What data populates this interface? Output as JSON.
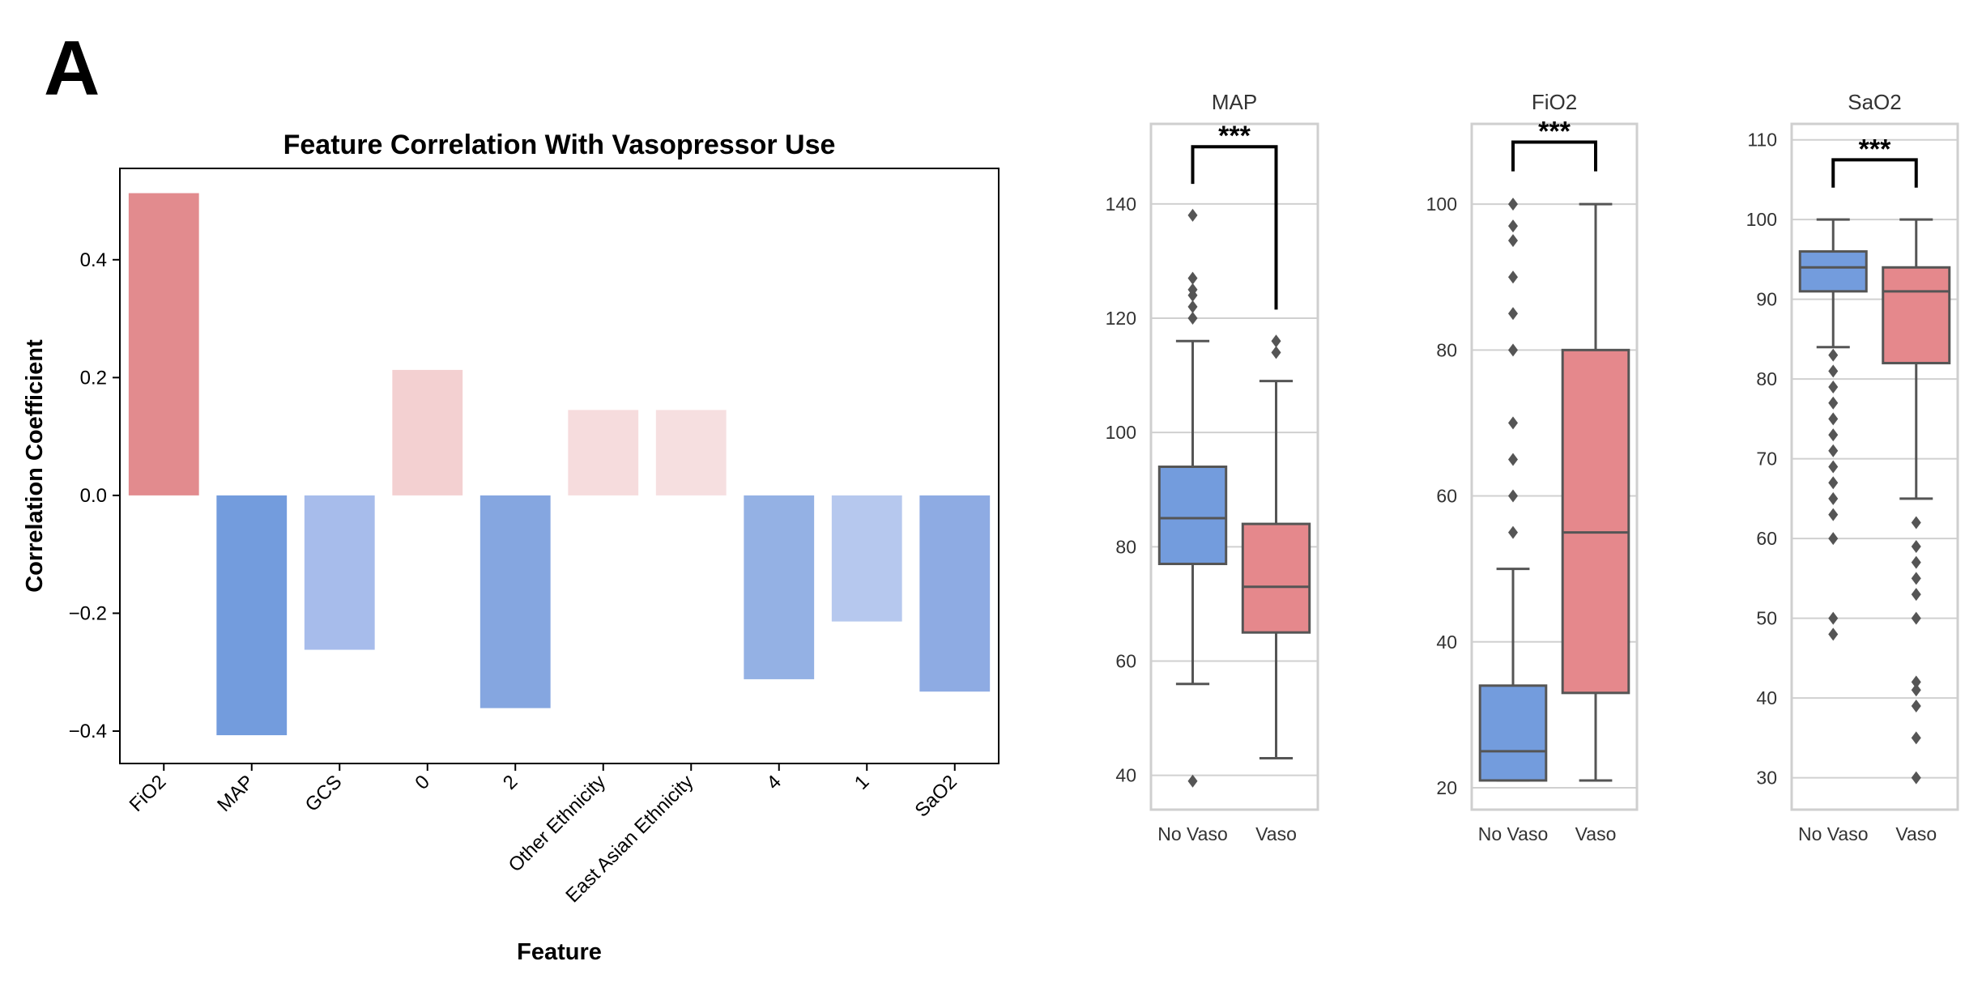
{
  "panel_label": "A",
  "chart_data": [
    {
      "type": "bar",
      "title": "Feature Correlation With Vasopressor Use",
      "xlabel": "Feature",
      "ylabel": "Correlation Coefficient",
      "categories": [
        "FiO2",
        "MAP",
        "GCS",
        "0",
        "2",
        "Other Ethnicity",
        "East Asian Ethnicity",
        "4",
        "1",
        "SaO2"
      ],
      "values": [
        0.513,
        -0.407,
        -0.262,
        0.213,
        -0.361,
        0.145,
        0.145,
        -0.312,
        -0.214,
        -0.333
      ],
      "bar_colors": [
        "#e28b8e",
        "#739cdd",
        "#a7bceb",
        "#f3d0d1",
        "#85a6e0",
        "#f6dcdd",
        "#f6dfe0",
        "#94b1e4",
        "#b6c8ee",
        "#8eabe3"
      ],
      "yticks": [
        0.4,
        0.2,
        0.0,
        -0.2,
        -0.4
      ],
      "ytick_labels": [
        "0.4",
        "0.2",
        "0.0",
        "−0.2",
        "−0.4"
      ],
      "ylim": [
        -0.455,
        0.555
      ],
      "grid": false
    },
    {
      "type": "box",
      "title": "MAP",
      "categories": [
        "No Vaso",
        "Vaso"
      ],
      "colors": [
        "#739cdd",
        "#e5888c"
      ],
      "ylim": [
        34,
        154
      ],
      "yticks": [
        40,
        60,
        80,
        100,
        120,
        140
      ],
      "ytick_labels": [
        "40",
        "60",
        "80",
        "100",
        "120",
        "140"
      ],
      "grid": true,
      "boxes": [
        {
          "whislo": 56,
          "q1": 77,
          "med": 85,
          "q3": 94,
          "whishi": 116,
          "fliers": [
            39,
            120,
            122,
            124,
            125,
            127,
            138
          ]
        },
        {
          "whislo": 43,
          "q1": 65,
          "med": 73,
          "q3": 84,
          "whishi": 109,
          "fliers": [
            114,
            116
          ]
        }
      ],
      "significance": "***",
      "bracket": {
        "top": 150,
        "left_end": 143.5,
        "right_end": 121.5
      }
    },
    {
      "type": "box",
      "title": "FiO2",
      "categories": [
        "No Vaso",
        "Vaso"
      ],
      "colors": [
        "#739cdd",
        "#e5888c"
      ],
      "ylim": [
        17,
        111
      ],
      "yticks": [
        20,
        40,
        60,
        80,
        100
      ],
      "ytick_labels": [
        "20",
        "40",
        "60",
        "80",
        "100"
      ],
      "grid": true,
      "boxes": [
        {
          "whislo": 21,
          "q1": 21,
          "med": 25,
          "q3": 34,
          "whishi": 50,
          "fliers": [
            55,
            60,
            65,
            70,
            80,
            85,
            90,
            95,
            97,
            100
          ]
        },
        {
          "whislo": 21,
          "q1": 33,
          "med": 55,
          "q3": 80,
          "whishi": 100,
          "fliers": []
        }
      ],
      "significance": "***",
      "bracket": {
        "top": 108.5,
        "left_end": 104.5,
        "right_end": 104.5
      }
    },
    {
      "type": "box",
      "title": "SaO2",
      "categories": [
        "No Vaso",
        "Vaso"
      ],
      "colors": [
        "#739cdd",
        "#e5888c"
      ],
      "ylim": [
        26,
        112
      ],
      "yticks": [
        30,
        40,
        50,
        60,
        70,
        80,
        90,
        100,
        110
      ],
      "ytick_labels": [
        "30",
        "40",
        "50",
        "60",
        "70",
        "80",
        "90",
        "100",
        "110"
      ],
      "grid": true,
      "boxes": [
        {
          "whislo": 84,
          "q1": 91,
          "med": 94,
          "q3": 96,
          "whishi": 100,
          "fliers": [
            48,
            50,
            60,
            63,
            65,
            67,
            69,
            71,
            73,
            75,
            77,
            79,
            81,
            83
          ]
        },
        {
          "whislo": 65,
          "q1": 82,
          "med": 91,
          "q3": 94,
          "whishi": 100,
          "fliers": [
            30,
            35,
            39,
            41,
            42,
            50,
            53,
            55,
            57,
            59,
            62
          ]
        }
      ],
      "significance": "***",
      "bracket": {
        "top": 107.5,
        "left_end": 104,
        "right_end": 104
      }
    }
  ]
}
